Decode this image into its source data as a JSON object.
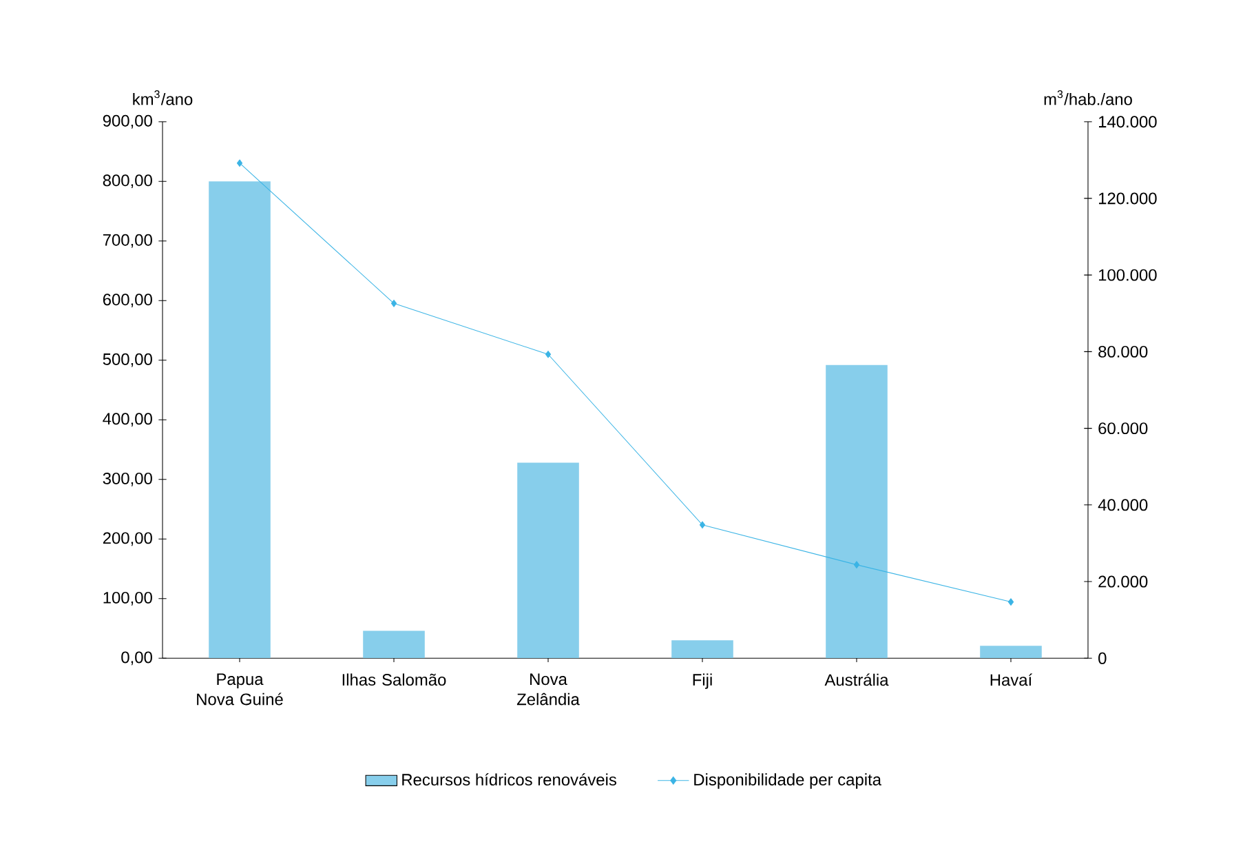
{
  "chart_data": {
    "type": "bar",
    "ylabel": "km$^{3}$/ano",
    "y2label": "m$^{3}$/hab./ano",
    "categories": [
      "Papua Nova Guiné",
      "Ilhas Salomão",
      "Nova Zelândia",
      "Fiji",
      "Austrália",
      "Havaí"
    ],
    "series": [
      {
        "name": "Recursos hídricos renováveis",
        "color": "#87ceeb",
        "values": [
          800,
          46,
          328,
          30,
          492,
          21
        ]
      },
      {
        "name": "Disponibilidade per capita",
        "type": "line",
        "axis": "y2",
        "color": "#3bb4e5",
        "marker": "diamond",
        "values": [
          129200,
          92600,
          79300,
          34800,
          24400,
          14700
        ]
      }
    ],
    "ylim": [
      0,
      900
    ],
    "yticks": [
      {
        "value": 0,
        "label": "0,00"
      },
      {
        "value": 100,
        "label": "100,00"
      },
      {
        "value": 200,
        "label": "200,00"
      },
      {
        "value": 300,
        "label": "300,00"
      },
      {
        "value": 400,
        "label": "400,00"
      },
      {
        "value": 500,
        "label": "500,00"
      },
      {
        "value": 600,
        "label": "600,00"
      },
      {
        "value": 700,
        "label": "700,00"
      },
      {
        "value": 800,
        "label": "800,00"
      },
      {
        "value": 900,
        "label": "900,00"
      }
    ],
    "y2lim": [
      0,
      140000
    ],
    "y2ticks": [
      0,
      {
        "value": 20000,
        "label": "20.000"
      },
      {
        "value": 40000,
        "label": "40.000"
      },
      {
        "value": 60000,
        "label": "60.000"
      },
      {
        "value": 80000,
        "label": "80.000"
      },
      {
        "value": 100000,
        "label": "100.000"
      },
      {
        "value": 120000,
        "label": "120.000"
      },
      {
        "value": 140000,
        "label": "140.000"
      }
    ],
    "legend": "bottom",
    "grid": false
  }
}
